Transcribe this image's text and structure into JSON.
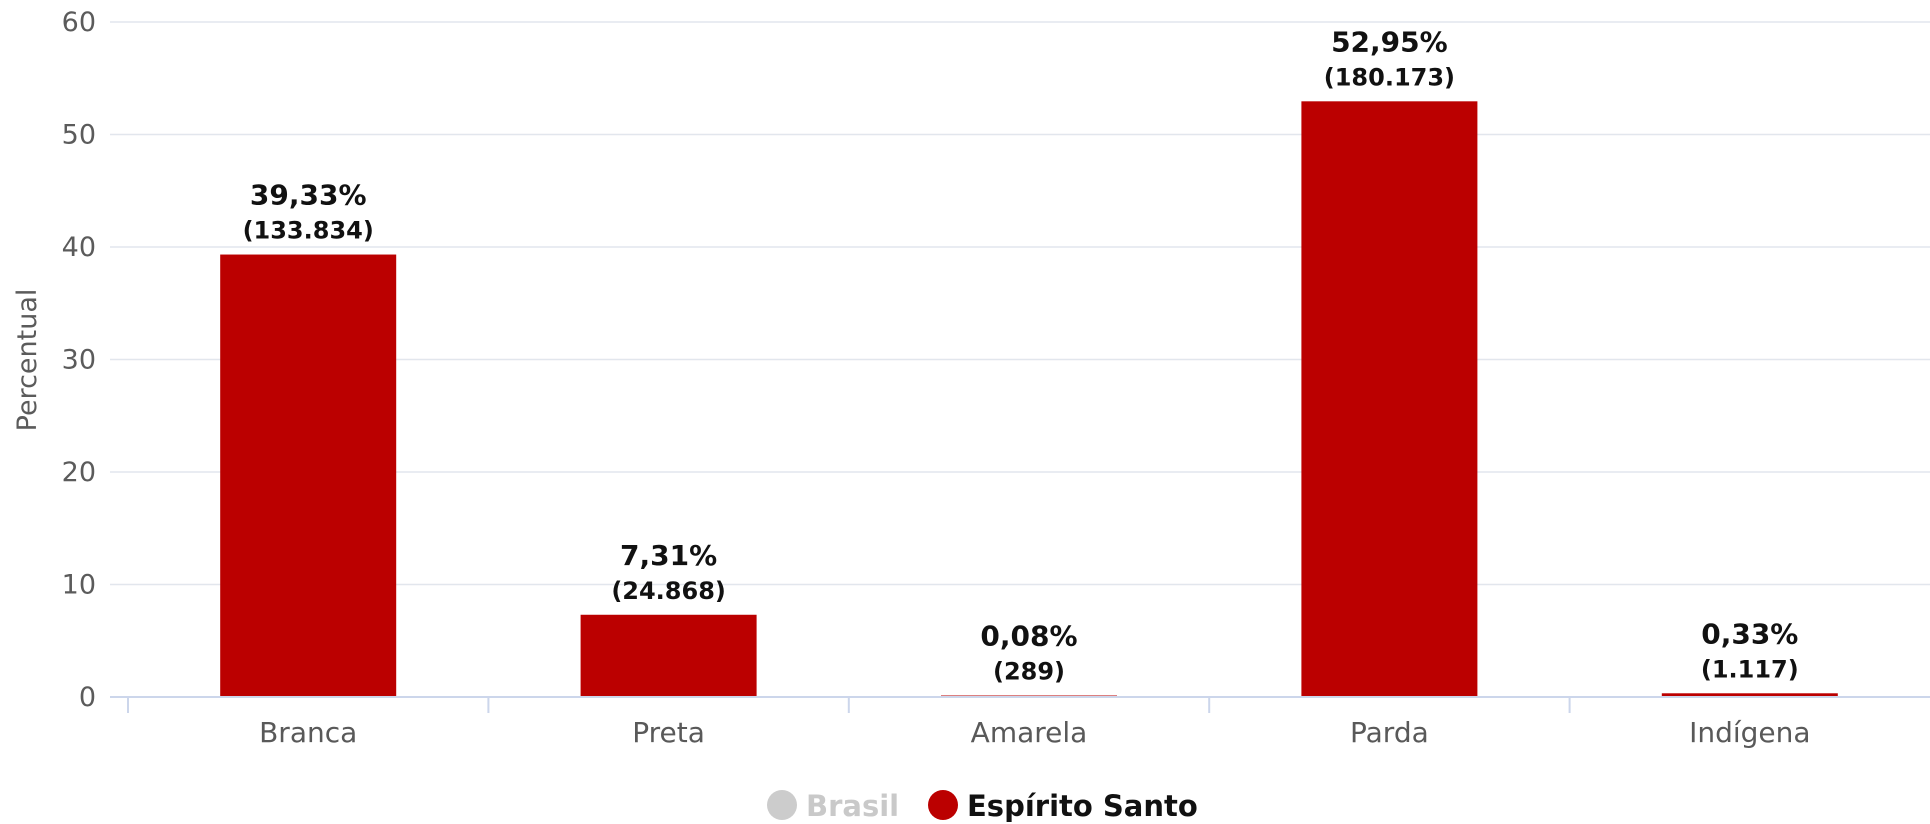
{
  "chart_data": {
    "type": "bar",
    "categories": [
      "Branca",
      "Preta",
      "Amarela",
      "Parda",
      "Indígena"
    ],
    "values": [
      39.33,
      7.31,
      0.08,
      52.95,
      0.33
    ],
    "percent_labels": [
      "39,33%",
      "7,31%",
      "0,08%",
      "52,95%",
      "0,33%"
    ],
    "count_labels": [
      "(133.834)",
      "(24.868)",
      "(289)",
      "(180.173)",
      "(1.117)"
    ],
    "ylabel": "Percentual",
    "ylim": [
      0,
      60
    ],
    "yticks": [
      0,
      10,
      20,
      30,
      40,
      50,
      60
    ],
    "grid": true,
    "bar_color": "#bb0000",
    "legend_placement": "bottom-center",
    "legend": [
      {
        "name": "Brasil",
        "color": "#cccccc",
        "text_color": "#c9c9c9",
        "active": false
      },
      {
        "name": "Espírito Santo",
        "color": "#bb0000",
        "text_color": "#111111",
        "active": true
      }
    ]
  }
}
